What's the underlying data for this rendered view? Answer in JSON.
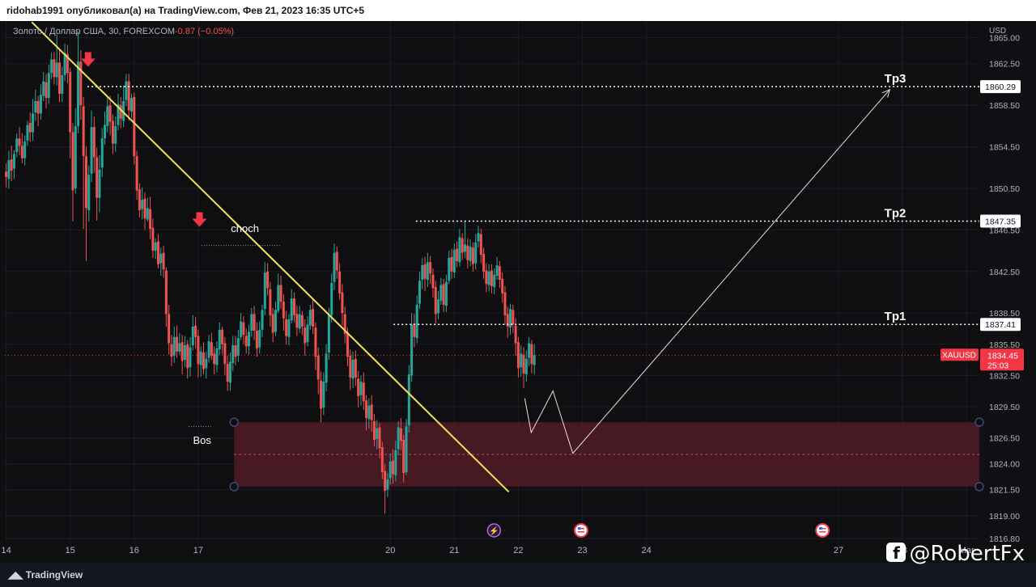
{
  "header": {
    "published_line": "ridohab1991 опубликовал(а) на TradingView.com, Фев 21, 2023 16:35 UTC+5"
  },
  "legend": {
    "symbol_line": "Золото / Доллар США, 30, FOREXCOM",
    "change": "-0.87 (−0.05%)"
  },
  "branding": {
    "logo": "TradingView",
    "watermark": "@RobertFx"
  },
  "colors": {
    "up": "#26a69a",
    "down": "#ef5350",
    "trendline": "#f5e05a",
    "zone": "#5a1e2a",
    "badge": "#f23645"
  },
  "chart_data": {
    "type": "candlestick",
    "price_axis": {
      "currency": "USD",
      "ticks": [
        1865.0,
        1862.5,
        1858.5,
        1854.5,
        1850.5,
        1846.5,
        1842.5,
        1838.5,
        1835.5,
        1832.5,
        1829.5,
        1826.5,
        1824.0,
        1821.5,
        1819.0,
        1816.8
      ],
      "range": [
        1816.5,
        1866.6
      ]
    },
    "time_axis": {
      "labels": [
        "14",
        "15",
        "16",
        "17",
        "20",
        "21",
        "22",
        "23",
        "24",
        "27",
        "28",
        "Mar"
      ],
      "label_days": [
        14,
        15,
        16,
        17,
        20,
        21,
        22,
        23,
        24,
        27,
        28,
        29
      ],
      "range_days": [
        13.98,
        29.2
      ]
    },
    "current_price": {
      "symbol": "XAUUSD",
      "price": 1834.45,
      "countdown": "25:03"
    },
    "levels": [
      {
        "name": "Tp3",
        "price": 1860.29,
        "from_day": 15.27,
        "label": "Tp3",
        "badge": "1860.29"
      },
      {
        "name": "Tp2",
        "price": 1847.35,
        "from_day": 20.4,
        "label": "Tp2",
        "badge": "1847.35"
      },
      {
        "name": "Tp1",
        "price": 1837.41,
        "from_day": 20.05,
        "label": "Tp1",
        "badge": "1837.41"
      }
    ],
    "annotations": [
      {
        "text": "choch",
        "day": 17.73,
        "price": 1846.3
      },
      {
        "text": "Bos",
        "day": 17.06,
        "price": 1825.9
      }
    ],
    "zone": {
      "top": 1828.0,
      "bottom": 1821.8,
      "mid": 1824.9,
      "from_day": 17.56
    },
    "trendline": {
      "start": {
        "day": 14.4,
        "price": 1866.5
      },
      "end": {
        "day": 21.85,
        "price": 1821.3
      }
    },
    "arrows": [
      {
        "day": 15.28,
        "price": 1862.2
      },
      {
        "day": 17.02,
        "price": 1846.8
      }
    ],
    "projection": [
      {
        "day": 22.1,
        "price": 1830.3
      },
      {
        "day": 22.2,
        "price": 1827.0
      },
      {
        "day": 22.54,
        "price": 1831.0
      },
      {
        "day": 22.85,
        "price": 1825.0
      },
      {
        "day": 27.8,
        "price": 1860.0
      }
    ],
    "candles": [
      [
        1852.1,
        1851.6,
        1852.9,
        1850.6
      ],
      [
        1851.4,
        1853.2,
        1854.1,
        1850.5
      ],
      [
        1853.3,
        1852.2,
        1854.6,
        1851.2
      ],
      [
        1852.4,
        1853.8,
        1854.2,
        1851.4
      ],
      [
        1854.0,
        1855.3,
        1855.8,
        1853.5
      ],
      [
        1855.3,
        1854.6,
        1856.4,
        1853.7
      ],
      [
        1854.6,
        1853.4,
        1855.8,
        1852.9
      ],
      [
        1853.4,
        1855.0,
        1855.6,
        1852.7
      ],
      [
        1855.1,
        1856.6,
        1857.0,
        1854.6
      ],
      [
        1856.8,
        1855.9,
        1857.8,
        1855.0
      ],
      [
        1855.9,
        1857.7,
        1859.1,
        1855.1
      ],
      [
        1857.8,
        1858.9,
        1860.0,
        1857.0
      ],
      [
        1858.9,
        1857.7,
        1859.4,
        1856.5
      ],
      [
        1857.7,
        1859.5,
        1860.5,
        1857.1
      ],
      [
        1859.4,
        1860.8,
        1861.7,
        1858.9
      ],
      [
        1860.7,
        1859.2,
        1861.5,
        1858.2
      ],
      [
        1859.2,
        1861.6,
        1862.4,
        1858.6
      ],
      [
        1861.6,
        1862.9,
        1863.6,
        1861.0
      ],
      [
        1862.9,
        1861.2,
        1863.6,
        1860.5
      ],
      [
        1861.2,
        1862.6,
        1865.3,
        1860.4
      ],
      [
        1862.6,
        1859.6,
        1863.9,
        1858.8
      ],
      [
        1859.6,
        1861.4,
        1862.2,
        1858.8
      ],
      [
        1861.4,
        1863.5,
        1864.4,
        1860.8
      ],
      [
        1863.4,
        1861.6,
        1864.3,
        1860.6
      ],
      [
        1861.7,
        1855.9,
        1862.1,
        1853.4
      ],
      [
        1855.9,
        1850.3,
        1856.8,
        1847.3
      ],
      [
        1850.5,
        1856.5,
        1858.2,
        1850.0
      ],
      [
        1856.5,
        1862.7,
        1865.6,
        1855.8
      ],
      [
        1862.7,
        1858.5,
        1863.8,
        1857.1
      ],
      [
        1858.4,
        1853.6,
        1859.3,
        1846.6
      ],
      [
        1853.6,
        1848.6,
        1854.5,
        1843.5
      ],
      [
        1848.4,
        1851.8,
        1852.7,
        1847.3
      ],
      [
        1851.9,
        1856.4,
        1858.0,
        1851.1
      ],
      [
        1856.4,
        1853.5,
        1857.4,
        1852.0
      ],
      [
        1853.5,
        1849.6,
        1854.4,
        1847.4
      ],
      [
        1849.6,
        1852.3,
        1853.7,
        1848.2
      ],
      [
        1852.5,
        1855.3,
        1856.3,
        1851.6
      ],
      [
        1855.3,
        1856.6,
        1857.9,
        1854.7
      ],
      [
        1856.5,
        1858.4,
        1859.3,
        1855.9
      ],
      [
        1858.5,
        1856.9,
        1859.4,
        1855.6
      ],
      [
        1857.0,
        1854.8,
        1857.6,
        1853.8
      ],
      [
        1854.8,
        1856.5,
        1857.4,
        1854.0
      ],
      [
        1856.6,
        1858.6,
        1859.6,
        1856.1
      ],
      [
        1858.5,
        1857.2,
        1859.3,
        1856.3
      ],
      [
        1857.0,
        1858.9,
        1860.4,
        1856.4
      ],
      [
        1859.0,
        1860.8,
        1861.5,
        1858.4
      ],
      [
        1860.8,
        1858.0,
        1861.5,
        1857.0
      ],
      [
        1857.9,
        1859.2,
        1859.6,
        1857.3
      ],
      [
        1859.3,
        1853.6,
        1859.7,
        1852.8
      ],
      [
        1853.6,
        1850.3,
        1854.1,
        1849.4
      ],
      [
        1850.4,
        1848.4,
        1851.0,
        1847.7
      ],
      [
        1848.5,
        1849.4,
        1850.6,
        1847.5
      ],
      [
        1849.5,
        1847.6,
        1850.1,
        1846.5
      ],
      [
        1847.5,
        1848.6,
        1849.6,
        1847.3
      ],
      [
        1848.5,
        1846.6,
        1849.7,
        1845.6
      ],
      [
        1846.7,
        1844.5,
        1847.6,
        1843.8
      ],
      [
        1844.5,
        1845.3,
        1845.7,
        1843.7
      ],
      [
        1845.4,
        1843.2,
        1846.1,
        1842.8
      ],
      [
        1843.3,
        1844.2,
        1844.8,
        1842.1
      ],
      [
        1844.3,
        1842.7,
        1845.0,
        1841.9
      ],
      [
        1842.6,
        1838.4,
        1842.9,
        1837.2
      ],
      [
        1838.4,
        1835.6,
        1839.3,
        1834.5
      ],
      [
        1835.5,
        1834.3,
        1836.4,
        1833.4
      ],
      [
        1834.4,
        1836.2,
        1837.2,
        1833.7
      ],
      [
        1836.2,
        1834.8,
        1837.3,
        1834.2
      ],
      [
        1834.8,
        1835.6,
        1836.6,
        1834.5
      ],
      [
        1835.7,
        1833.9,
        1836.4,
        1832.6
      ],
      [
        1834.0,
        1835.4,
        1836.3,
        1833.3
      ],
      [
        1835.5,
        1833.2,
        1835.9,
        1832.2
      ],
      [
        1833.3,
        1835.2,
        1836.2,
        1832.4
      ],
      [
        1835.4,
        1837.2,
        1838.3,
        1834.9
      ],
      [
        1837.3,
        1836.2,
        1838.1,
        1835.1
      ],
      [
        1836.3,
        1833.6,
        1836.9,
        1832.3
      ],
      [
        1833.5,
        1834.8,
        1835.3,
        1832.4
      ],
      [
        1834.7,
        1833.1,
        1835.7,
        1832.6
      ],
      [
        1833.2,
        1834.1,
        1834.8,
        1832.2
      ],
      [
        1834.2,
        1835.8,
        1836.4,
        1833.7
      ],
      [
        1835.7,
        1834.4,
        1836.6,
        1834.0
      ],
      [
        1834.6,
        1833.6,
        1835.3,
        1832.6
      ],
      [
        1833.5,
        1835.1,
        1835.8,
        1832.8
      ],
      [
        1835.0,
        1836.9,
        1837.6,
        1834.5
      ],
      [
        1836.9,
        1835.5,
        1837.2,
        1834.6
      ],
      [
        1835.6,
        1833.6,
        1836.2,
        1832.5
      ],
      [
        1833.6,
        1831.9,
        1834.4,
        1831.0
      ],
      [
        1831.8,
        1833.8,
        1834.7,
        1831.0
      ],
      [
        1833.7,
        1835.4,
        1836.3,
        1832.9
      ],
      [
        1835.4,
        1834.3,
        1836.3,
        1833.5
      ],
      [
        1834.4,
        1836.1,
        1836.9,
        1833.8
      ],
      [
        1836.2,
        1837.7,
        1838.5,
        1835.9
      ],
      [
        1837.6,
        1836.4,
        1838.2,
        1835.5
      ],
      [
        1836.3,
        1835.3,
        1837.0,
        1834.6
      ],
      [
        1835.3,
        1836.7,
        1837.4,
        1834.5
      ],
      [
        1836.8,
        1838.4,
        1839.0,
        1836.2
      ],
      [
        1838.4,
        1836.8,
        1839.2,
        1835.9
      ],
      [
        1836.8,
        1835.1,
        1837.6,
        1834.3
      ],
      [
        1835.2,
        1836.9,
        1837.7,
        1834.6
      ],
      [
        1836.9,
        1838.8,
        1839.3,
        1836.2
      ],
      [
        1838.9,
        1842.4,
        1843.4,
        1838.3
      ],
      [
        1842.5,
        1840.9,
        1843.3,
        1840.2
      ],
      [
        1840.8,
        1838.3,
        1841.5,
        1837.2
      ],
      [
        1838.4,
        1836.6,
        1839.0,
        1835.7
      ],
      [
        1836.7,
        1838.8,
        1839.6,
        1836.3
      ],
      [
        1838.7,
        1841.2,
        1842.3,
        1838.5
      ],
      [
        1841.2,
        1839.6,
        1842.1,
        1838.9
      ],
      [
        1839.6,
        1838.0,
        1840.3,
        1836.8
      ],
      [
        1837.9,
        1836.3,
        1838.7,
        1835.5
      ],
      [
        1836.2,
        1837.9,
        1838.4,
        1835.4
      ],
      [
        1837.8,
        1839.9,
        1840.8,
        1837.5
      ],
      [
        1839.9,
        1838.3,
        1840.5,
        1837.6
      ],
      [
        1838.4,
        1837.1,
        1839.2,
        1836.3
      ],
      [
        1837.0,
        1838.4,
        1839.2,
        1836.6
      ],
      [
        1838.3,
        1837.2,
        1838.7,
        1836.4
      ],
      [
        1837.1,
        1835.6,
        1837.9,
        1834.4
      ],
      [
        1835.7,
        1837.4,
        1838.2,
        1835.3
      ],
      [
        1837.3,
        1838.8,
        1839.3,
        1836.9
      ],
      [
        1838.9,
        1837.2,
        1839.8,
        1836.5
      ],
      [
        1837.1,
        1834.3,
        1837.6,
        1833.0
      ],
      [
        1834.4,
        1832.1,
        1835.2,
        1830.7
      ],
      [
        1832.0,
        1829.3,
        1832.9,
        1828.0
      ],
      [
        1829.4,
        1831.9,
        1832.8,
        1828.7
      ],
      [
        1831.8,
        1834.6,
        1835.5,
        1831.0
      ],
      [
        1834.7,
        1838.3,
        1839.0,
        1834.0
      ],
      [
        1838.3,
        1841.4,
        1842.3,
        1837.6
      ],
      [
        1841.5,
        1844.3,
        1845.2,
        1840.7
      ],
      [
        1844.4,
        1842.6,
        1844.9,
        1841.8
      ],
      [
        1842.5,
        1840.4,
        1843.3,
        1839.8
      ],
      [
        1840.5,
        1838.5,
        1841.3,
        1837.3
      ],
      [
        1838.4,
        1836.5,
        1839.1,
        1835.6
      ],
      [
        1836.6,
        1834.3,
        1837.1,
        1833.4
      ],
      [
        1834.4,
        1832.3,
        1835.0,
        1831.1
      ],
      [
        1832.2,
        1834.0,
        1834.8,
        1831.3
      ],
      [
        1834.1,
        1832.3,
        1834.9,
        1831.5
      ],
      [
        1832.2,
        1830.5,
        1832.9,
        1829.4
      ],
      [
        1830.6,
        1831.9,
        1832.5,
        1829.6
      ],
      [
        1831.8,
        1830.0,
        1832.8,
        1829.2
      ],
      [
        1830.1,
        1828.4,
        1830.6,
        1827.2
      ],
      [
        1828.3,
        1829.6,
        1830.3,
        1827.4
      ],
      [
        1829.7,
        1828.2,
        1830.6,
        1827.1
      ],
      [
        1828.1,
        1826.3,
        1828.8,
        1825.7
      ],
      [
        1826.4,
        1827.4,
        1828.2,
        1825.4
      ],
      [
        1827.5,
        1825.5,
        1827.9,
        1824.5
      ],
      [
        1825.6,
        1823.2,
        1826.1,
        1822.5
      ],
      [
        1823.3,
        1821.4,
        1824.0,
        1819.2
      ],
      [
        1821.5,
        1822.5,
        1823.1,
        1820.8
      ],
      [
        1822.6,
        1824.2,
        1825.0,
        1822.0
      ],
      [
        1824.3,
        1823.0,
        1825.4,
        1822.1
      ],
      [
        1822.9,
        1825.3,
        1826.2,
        1822.3
      ],
      [
        1825.4,
        1827.5,
        1828.1,
        1824.8
      ],
      [
        1827.4,
        1826.2,
        1828.4,
        1825.3
      ],
      [
        1826.3,
        1823.1,
        1826.8,
        1822.2
      ],
      [
        1823.2,
        1827.6,
        1828.3,
        1822.9
      ],
      [
        1827.7,
        1832.6,
        1833.5,
        1827.0
      ],
      [
        1832.5,
        1837.4,
        1838.5,
        1831.9
      ],
      [
        1837.5,
        1836.2,
        1838.4,
        1835.2
      ],
      [
        1836.1,
        1839.3,
        1840.2,
        1835.6
      ],
      [
        1839.4,
        1841.6,
        1842.5,
        1838.9
      ],
      [
        1841.7,
        1843.1,
        1843.8,
        1840.8
      ],
      [
        1843.2,
        1841.8,
        1843.9,
        1840.6
      ],
      [
        1841.7,
        1843.4,
        1844.3,
        1841.0
      ],
      [
        1843.4,
        1842.3,
        1844.0,
        1841.3
      ],
      [
        1842.2,
        1840.9,
        1842.8,
        1840.0
      ],
      [
        1841.0,
        1838.4,
        1841.6,
        1837.5
      ],
      [
        1838.5,
        1839.8,
        1840.6,
        1837.9
      ],
      [
        1839.7,
        1841.2,
        1841.9,
        1839.3
      ],
      [
        1841.3,
        1839.3,
        1841.8,
        1838.6
      ],
      [
        1839.2,
        1841.5,
        1842.2,
        1838.6
      ],
      [
        1841.6,
        1843.8,
        1844.5,
        1841.3
      ],
      [
        1843.9,
        1842.5,
        1844.7,
        1841.8
      ],
      [
        1842.4,
        1844.6,
        1845.2,
        1841.9
      ],
      [
        1844.7,
        1843.5,
        1845.4,
        1842.9
      ],
      [
        1843.4,
        1845.8,
        1846.6,
        1843.0
      ],
      [
        1845.7,
        1844.3,
        1846.2,
        1843.6
      ],
      [
        1844.4,
        1845.1,
        1847.3,
        1843.8
      ],
      [
        1845.0,
        1843.6,
        1845.7,
        1842.8
      ],
      [
        1843.5,
        1844.9,
        1845.6,
        1843.0
      ],
      [
        1844.8,
        1843.2,
        1845.3,
        1842.5
      ],
      [
        1843.3,
        1845.3,
        1846.1,
        1842.7
      ],
      [
        1845.4,
        1846.2,
        1846.9,
        1844.8
      ],
      [
        1846.1,
        1844.1,
        1846.6,
        1843.3
      ],
      [
        1844.2,
        1842.5,
        1844.8,
        1841.8
      ],
      [
        1842.6,
        1841.3,
        1843.3,
        1840.5
      ],
      [
        1841.2,
        1842.5,
        1843.2,
        1840.6
      ],
      [
        1842.6,
        1841.1,
        1843.2,
        1840.4
      ],
      [
        1841.0,
        1842.2,
        1842.8,
        1840.3
      ],
      [
        1842.1,
        1843.1,
        1843.9,
        1841.7
      ],
      [
        1843.0,
        1841.7,
        1843.5,
        1840.9
      ],
      [
        1841.8,
        1840.4,
        1842.4,
        1839.5
      ],
      [
        1840.5,
        1838.3,
        1841.1,
        1837.4
      ],
      [
        1838.4,
        1837.2,
        1839.1,
        1836.1
      ],
      [
        1837.1,
        1838.9,
        1839.4,
        1836.4
      ],
      [
        1838.8,
        1837.4,
        1839.3,
        1836.6
      ],
      [
        1837.3,
        1835.6,
        1838.0,
        1834.4
      ],
      [
        1835.7,
        1833.2,
        1836.2,
        1832.3
      ],
      [
        1833.3,
        1834.6,
        1835.4,
        1832.4
      ],
      [
        1834.5,
        1832.7,
        1835.2,
        1831.3
      ],
      [
        1832.6,
        1834.1,
        1834.9,
        1831.9
      ],
      [
        1834.2,
        1835.6,
        1836.2,
        1833.4
      ],
      [
        1835.5,
        1833.6,
        1835.9,
        1832.7
      ],
      [
        1833.5,
        1834.45,
        1835.5,
        1832.6
      ]
    ]
  }
}
